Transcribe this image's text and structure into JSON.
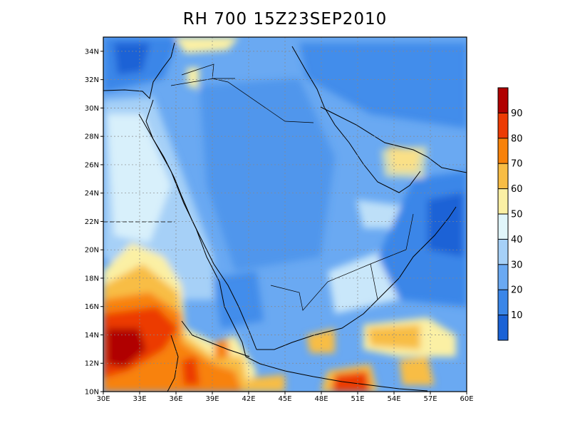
{
  "title": "RH 700 15Z23SEP2010",
  "map": {
    "lon_range": [
      30,
      60
    ],
    "lat_range": [
      10,
      35
    ],
    "x_ticks": [
      "30E",
      "33E",
      "36E",
      "39E",
      "42E",
      "45E",
      "48E",
      "51E",
      "54E",
      "57E",
      "60E"
    ],
    "y_ticks": [
      "10N",
      "12N",
      "14N",
      "16N",
      "18N",
      "20N",
      "22N",
      "24N",
      "26N",
      "28N",
      "30N",
      "32N",
      "34N"
    ],
    "grid": "dotted"
  },
  "colorbar": {
    "levels": [
      "10",
      "20",
      "30",
      "40",
      "50",
      "60",
      "70",
      "80",
      "90"
    ],
    "colors": [
      "#1a62d6",
      "#3a86e8",
      "#6aa9f2",
      "#a6d0f7",
      "#e1f6fb",
      "#fbf0a4",
      "#f8bd45",
      "#f8820a",
      "#ec3b04",
      "#b00000"
    ]
  }
}
